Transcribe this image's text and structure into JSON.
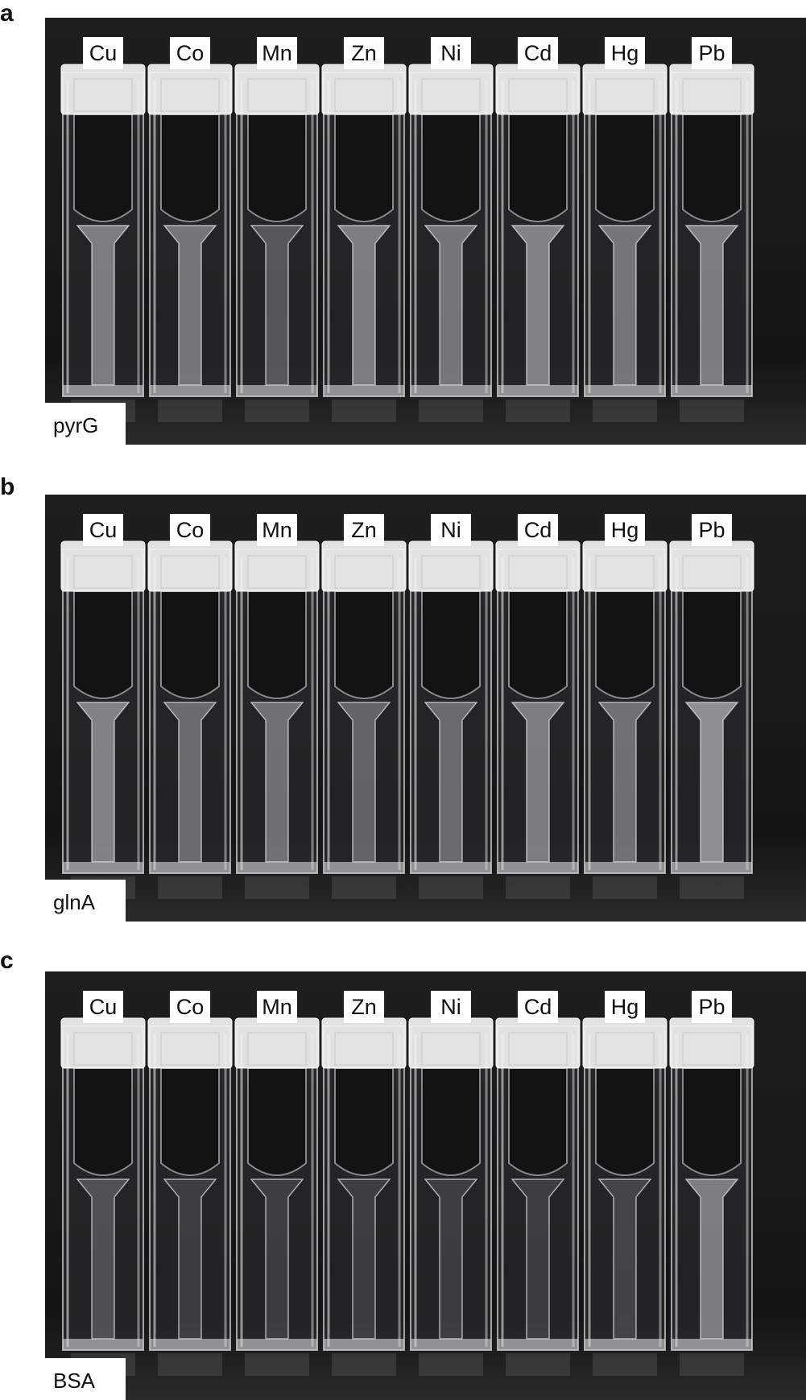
{
  "panels": [
    {
      "letter": "a",
      "sample": "pyrG",
      "metals": [
        "Cu",
        "Co",
        "Mn",
        "Zn",
        "Ni",
        "Cd",
        "Hg",
        "Pb"
      ],
      "turbidity": [
        0.55,
        0.5,
        0.25,
        0.55,
        0.5,
        0.6,
        0.5,
        0.55
      ]
    },
    {
      "letter": "b",
      "sample": "glnA",
      "metals": [
        "Cu",
        "Co",
        "Mn",
        "Zn",
        "Ni",
        "Cd",
        "Hg",
        "Pb"
      ],
      "turbidity": [
        0.6,
        0.4,
        0.45,
        0.35,
        0.4,
        0.55,
        0.45,
        0.7
      ]
    },
    {
      "letter": "c",
      "sample": "BSA",
      "metals": [
        "Cu",
        "Co",
        "Mn",
        "Zn",
        "Ni",
        "Cd",
        "Hg",
        "Pb"
      ],
      "turbidity": [
        0.2,
        0.05,
        0.05,
        0.05,
        0.05,
        0.05,
        0.1,
        0.55
      ]
    }
  ],
  "colors": {
    "background": "#1b1b1b",
    "liquid": "#c9ccd0",
    "cap": "#f2f2f2"
  }
}
